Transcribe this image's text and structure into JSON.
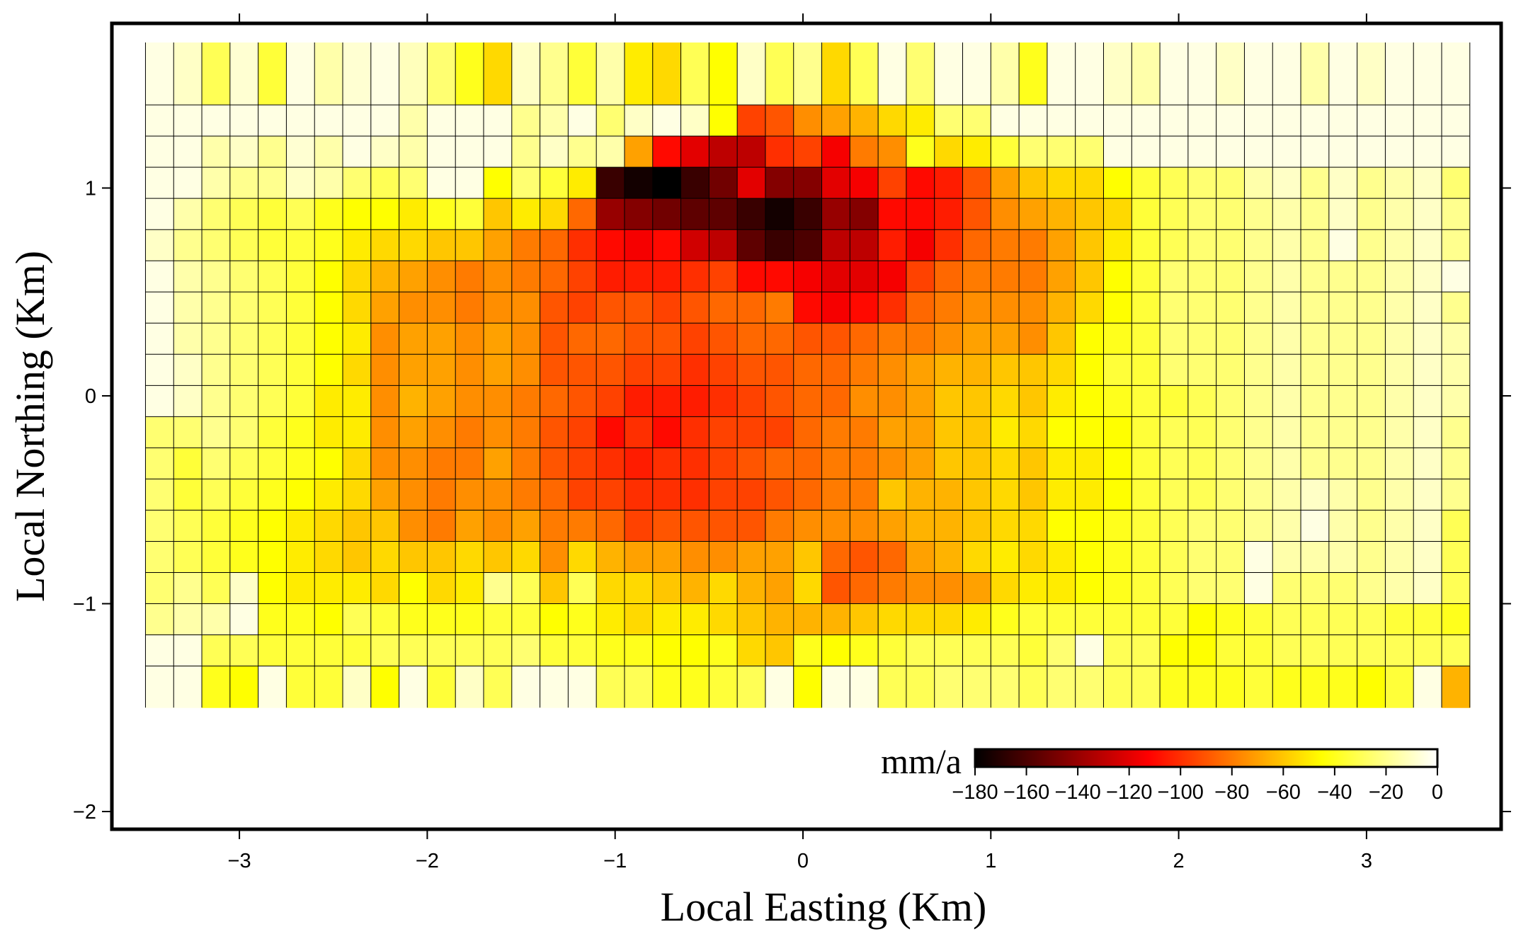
{
  "chart_data": {
    "type": "heatmap",
    "title": "",
    "xlabel": "Local Easting (Km)",
    "ylabel": "Local Northing (Km)",
    "xlim": [
      -3.7,
      3.7
    ],
    "ylim": [
      -2.1,
      1.75
    ],
    "x_ticks": [
      {
        "value": -3,
        "label": "−3"
      },
      {
        "value": -2,
        "label": "−2"
      },
      {
        "value": -1,
        "label": "−1"
      },
      {
        "value": 0,
        "label": "0"
      },
      {
        "value": 1,
        "label": "1"
      },
      {
        "value": 2,
        "label": "2"
      },
      {
        "value": 3,
        "label": "3"
      }
    ],
    "y_ticks": [
      {
        "value": -2,
        "label": "−2"
      },
      {
        "value": -1,
        "label": "−1"
      },
      {
        "value": 0,
        "label": "0"
      },
      {
        "value": 1,
        "label": "1"
      }
    ],
    "grid_x_start": -3.5,
    "grid_x_step": 0.15,
    "grid_y_top": 1.7,
    "grid_y_step": 0.15,
    "rows": [
      {
        "y0": 1.4,
        "y1": 1.7,
        "values": [
          -5,
          -10,
          -30,
          -8,
          -35,
          -5,
          -15,
          -8,
          -5,
          -12,
          -25,
          -40,
          -55,
          -10,
          -20,
          -35,
          -15,
          -50,
          -55,
          -30,
          -45,
          -10,
          -30,
          -20,
          -55,
          -30,
          -5,
          -25,
          -5,
          -5,
          -15,
          -40,
          -5,
          -5,
          -10,
          -15,
          -5,
          -5,
          -10,
          -5,
          -5,
          -15,
          -5,
          -10,
          -5,
          -5,
          -5
        ]
      },
      {
        "y0": 1.25,
        "y1": 1.4,
        "values": [
          -5,
          -5,
          -5,
          -5,
          -5,
          -5,
          -5,
          -5,
          -5,
          -15,
          -5,
          -5,
          -5,
          -20,
          -15,
          -5,
          -25,
          -10,
          -5,
          -10,
          -45,
          -95,
          -90,
          -75,
          -70,
          -65,
          -55,
          -50,
          -25,
          -25,
          -5,
          -5,
          -5,
          -5,
          -5,
          -5,
          -5,
          -5,
          -5,
          -5,
          -5,
          -5,
          -5,
          -5,
          -5,
          -5,
          -5
        ]
      },
      {
        "y0": 1.1,
        "y1": 1.25,
        "values": [
          -5,
          -5,
          -15,
          -10,
          -20,
          -8,
          -15,
          -5,
          -10,
          -15,
          -5,
          -5,
          -5,
          -20,
          -10,
          -20,
          -15,
          -70,
          -110,
          -120,
          -130,
          -130,
          -100,
          -95,
          -115,
          -80,
          -75,
          -40,
          -55,
          -50,
          -35,
          -25,
          -25,
          -25,
          -5,
          -5,
          -5,
          -5,
          -5,
          -5,
          -5,
          -5,
          -5,
          -5,
          -5,
          -5,
          -5
        ]
      },
      {
        "y0": 0.95,
        "y1": 1.1,
        "values": [
          -5,
          -5,
          -15,
          -20,
          -20,
          -10,
          -15,
          -25,
          -30,
          -25,
          -5,
          -5,
          -45,
          -25,
          -35,
          -50,
          -165,
          -175,
          -180,
          -165,
          -150,
          -120,
          -145,
          -145,
          -120,
          -115,
          -95,
          -110,
          -105,
          -90,
          -70,
          -60,
          -55,
          -55,
          -45,
          -35,
          -30,
          -25,
          -25,
          -15,
          -10,
          -20,
          -10,
          -20,
          -15,
          -10,
          -25
        ]
      },
      {
        "y0": 0.8,
        "y1": 0.95,
        "values": [
          -5,
          -15,
          -25,
          -30,
          -35,
          -30,
          -40,
          -45,
          -45,
          -50,
          -40,
          -35,
          -60,
          -50,
          -55,
          -85,
          -140,
          -145,
          -150,
          -155,
          -155,
          -165,
          -175,
          -165,
          -140,
          -145,
          -110,
          -110,
          -105,
          -90,
          -75,
          -70,
          -65,
          -60,
          -55,
          -35,
          -30,
          -25,
          -25,
          -20,
          -15,
          -20,
          -10,
          -20,
          -15,
          -10,
          -20
        ]
      },
      {
        "y0": 0.65,
        "y1": 0.8,
        "values": [
          -10,
          -20,
          -25,
          -30,
          -35,
          -35,
          -40,
          -50,
          -55,
          -55,
          -60,
          -60,
          -70,
          -80,
          -85,
          -100,
          -110,
          -115,
          -110,
          -125,
          -130,
          -155,
          -165,
          -160,
          -130,
          -130,
          -105,
          -115,
          -100,
          -85,
          -80,
          -80,
          -70,
          -60,
          -50,
          -35,
          -30,
          -25,
          -25,
          -20,
          -15,
          -20,
          -5,
          -20,
          -15,
          -10,
          -20
        ]
      },
      {
        "y0": 0.5,
        "y1": 0.65,
        "values": [
          -5,
          -15,
          -20,
          -25,
          -30,
          -35,
          -45,
          -55,
          -65,
          -70,
          -75,
          -80,
          -75,
          -80,
          -85,
          -95,
          -105,
          -105,
          -105,
          -100,
          -95,
          -110,
          -110,
          -115,
          -120,
          -120,
          -115,
          -95,
          -85,
          -80,
          -80,
          -80,
          -70,
          -60,
          -45,
          -35,
          -25,
          -25,
          -25,
          -20,
          -15,
          -20,
          -20,
          -20,
          -15,
          -10,
          -5
        ]
      },
      {
        "y0": 0.35,
        "y1": 0.5,
        "values": [
          -5,
          -15,
          -20,
          -25,
          -30,
          -35,
          -45,
          -55,
          -70,
          -75,
          -75,
          -80,
          -75,
          -75,
          -90,
          -95,
          -90,
          -90,
          -95,
          -90,
          -85,
          -85,
          -80,
          -110,
          -115,
          -110,
          -100,
          -85,
          -80,
          -75,
          -75,
          -75,
          -65,
          -55,
          -45,
          -35,
          -25,
          -25,
          -25,
          -20,
          -15,
          -20,
          -20,
          -20,
          -15,
          -10,
          -20
        ]
      },
      {
        "y0": 0.2,
        "y1": 0.35,
        "values": [
          -5,
          -15,
          -20,
          -25,
          -30,
          -35,
          -45,
          -50,
          -75,
          -70,
          -70,
          -75,
          -70,
          -75,
          -90,
          -85,
          -85,
          -90,
          -90,
          -95,
          -90,
          -85,
          -85,
          -90,
          -90,
          -85,
          -80,
          -80,
          -75,
          -70,
          -70,
          -75,
          -60,
          -45,
          -40,
          -35,
          -25,
          -25,
          -25,
          -20,
          -15,
          -20,
          -20,
          -20,
          -15,
          -10,
          -15
        ]
      },
      {
        "y0": 0.05,
        "y1": 0.2,
        "values": [
          -5,
          -10,
          -20,
          -25,
          -30,
          -35,
          -45,
          -55,
          -75,
          -70,
          -70,
          -75,
          -70,
          -75,
          -90,
          -90,
          -90,
          -95,
          -95,
          -100,
          -95,
          -90,
          -90,
          -85,
          -85,
          -80,
          -75,
          -70,
          -65,
          -65,
          -60,
          -60,
          -55,
          -45,
          -35,
          -35,
          -25,
          -25,
          -25,
          -20,
          -15,
          -20,
          -20,
          -20,
          -15,
          -10,
          -15
        ]
      },
      {
        "y0": -0.1,
        "y1": 0.05,
        "values": [
          -5,
          -10,
          -20,
          -25,
          -30,
          -35,
          -50,
          -50,
          -75,
          -65,
          -70,
          -75,
          -75,
          -80,
          -85,
          -90,
          -95,
          -105,
          -105,
          -105,
          -100,
          -95,
          -90,
          -85,
          -85,
          -75,
          -75,
          -70,
          -60,
          -60,
          -55,
          -60,
          -50,
          -45,
          -40,
          -35,
          -35,
          -30,
          -25,
          -20,
          -15,
          -20,
          -20,
          -20,
          -15,
          -10,
          -15
        ]
      },
      {
        "y0": -0.25,
        "y1": -0.1,
        "values": [
          -25,
          -25,
          -20,
          -25,
          -35,
          -40,
          -50,
          -50,
          -75,
          -70,
          -75,
          -80,
          -75,
          -80,
          -90,
          -95,
          -110,
          -100,
          -110,
          -100,
          -95,
          -95,
          -95,
          -85,
          -80,
          -80,
          -70,
          -70,
          -60,
          -60,
          -50,
          -55,
          -45,
          -45,
          -45,
          -35,
          -30,
          -30,
          -25,
          -20,
          -15,
          -20,
          -20,
          -20,
          -15,
          -10,
          -20
        ]
      },
      {
        "y0": -0.4,
        "y1": -0.25,
        "values": [
          -25,
          -35,
          -25,
          -30,
          -35,
          -40,
          -45,
          -55,
          -75,
          -75,
          -80,
          -80,
          -70,
          -80,
          -90,
          -95,
          -100,
          -105,
          -100,
          -100,
          -95,
          -90,
          -85,
          -85,
          -80,
          -80,
          -75,
          -70,
          -60,
          -60,
          -55,
          -60,
          -50,
          -50,
          -45,
          -35,
          -30,
          -30,
          -25,
          -20,
          -15,
          -20,
          -20,
          -20,
          -15,
          -10,
          -20
        ]
      },
      {
        "y0": -0.55,
        "y1": -0.4,
        "values": [
          -25,
          -35,
          -30,
          -35,
          -40,
          -45,
          -50,
          -55,
          -70,
          -75,
          -80,
          -75,
          -75,
          -80,
          -85,
          -95,
          -95,
          -100,
          -100,
          -100,
          -95,
          -95,
          -90,
          -85,
          -80,
          -80,
          -60,
          -65,
          -65,
          -60,
          -55,
          -60,
          -50,
          -50,
          -45,
          -35,
          -30,
          -30,
          -25,
          -20,
          -15,
          -10,
          -15,
          -20,
          -15,
          -10,
          -20
        ]
      },
      {
        "y0": -0.7,
        "y1": -0.55,
        "values": [
          -25,
          -30,
          -35,
          -40,
          -45,
          -50,
          -55,
          -60,
          -60,
          -75,
          -80,
          -70,
          -75,
          -70,
          -80,
          -80,
          -85,
          -95,
          -90,
          -90,
          -90,
          -90,
          -80,
          -75,
          -75,
          -75,
          -70,
          -65,
          -65,
          -60,
          -55,
          -55,
          -45,
          -45,
          -40,
          -35,
          -30,
          -25,
          -25,
          -20,
          -15,
          -5,
          -15,
          -20,
          -15,
          -10,
          -30
        ]
      },
      {
        "y0": -0.85,
        "y1": -0.7,
        "values": [
          -25,
          -30,
          -35,
          -40,
          -45,
          -50,
          -55,
          -60,
          -55,
          -60,
          -60,
          -55,
          -60,
          -55,
          -75,
          -55,
          -65,
          -70,
          -70,
          -75,
          -75,
          -70,
          -70,
          -60,
          -85,
          -90,
          -85,
          -70,
          -65,
          -55,
          -50,
          -55,
          -50,
          -45,
          -40,
          -35,
          -30,
          -25,
          -25,
          -5,
          -15,
          -15,
          -15,
          -20,
          -15,
          -10,
          -30
        ]
      },
      {
        "y0": -1.0,
        "y1": -0.85,
        "values": [
          -25,
          -20,
          -30,
          -10,
          -45,
          -50,
          -50,
          -50,
          -55,
          -45,
          -55,
          -50,
          -20,
          -30,
          -60,
          -30,
          -55,
          -55,
          -60,
          -65,
          -55,
          -65,
          -70,
          -55,
          -90,
          -85,
          -80,
          -75,
          -75,
          -70,
          -55,
          -50,
          -50,
          -45,
          -40,
          -35,
          -30,
          -25,
          -25,
          -5,
          -25,
          -25,
          -25,
          -20,
          -15,
          -10,
          -30
        ]
      },
      {
        "y0": -1.15,
        "y1": -1.0,
        "values": [
          -20,
          -15,
          -15,
          -5,
          -40,
          -40,
          -45,
          -30,
          -35,
          -40,
          -40,
          -40,
          -35,
          -35,
          -45,
          -40,
          -50,
          -55,
          -50,
          -50,
          -55,
          -60,
          -65,
          -65,
          -65,
          -60,
          -55,
          -55,
          -55,
          -50,
          -40,
          -35,
          -35,
          -35,
          -35,
          -35,
          -35,
          -45,
          -40,
          -35,
          -30,
          -30,
          -30,
          -30,
          -35,
          -35,
          -40
        ]
      },
      {
        "y0": -1.3,
        "y1": -1.15,
        "values": [
          -5,
          -5,
          -30,
          -30,
          -35,
          -35,
          -35,
          -35,
          -30,
          -30,
          -30,
          -30,
          -30,
          -25,
          -35,
          -35,
          -40,
          -40,
          -45,
          -45,
          -40,
          -55,
          -60,
          -40,
          -45,
          -40,
          -35,
          -30,
          -30,
          -30,
          -30,
          -35,
          -25,
          -5,
          -30,
          -30,
          -45,
          -45,
          -35,
          -35,
          -30,
          -30,
          -30,
          -30,
          -30,
          -30,
          -30
        ]
      },
      {
        "y0": -1.5,
        "y1": -1.3,
        "values": [
          -5,
          -5,
          -40,
          -45,
          -5,
          -35,
          -35,
          -10,
          -45,
          -5,
          -35,
          -10,
          -30,
          -5,
          -5,
          -5,
          -30,
          -30,
          -40,
          -40,
          -35,
          -30,
          -5,
          -45,
          -5,
          -5,
          -30,
          -30,
          -25,
          -25,
          -25,
          -30,
          -25,
          -25,
          -30,
          -30,
          -40,
          -40,
          -40,
          -35,
          -40,
          -40,
          -40,
          -45,
          -35,
          -5,
          -65
        ]
      }
    ],
    "colorbar": {
      "title": "mm/a",
      "min": -180,
      "max": 0,
      "colormap": "hot",
      "ticks": [
        {
          "value": -180,
          "label": "−180"
        },
        {
          "value": -160,
          "label": "−160"
        },
        {
          "value": -140,
          "label": "−140"
        },
        {
          "value": -120,
          "label": "−120"
        },
        {
          "value": -100,
          "label": "−100"
        },
        {
          "value": -80,
          "label": "−80"
        },
        {
          "value": -60,
          "label": "−60"
        },
        {
          "value": -40,
          "label": "−40"
        },
        {
          "value": -20,
          "label": "−20"
        },
        {
          "value": 0,
          "label": "0"
        }
      ],
      "placement": "bottom-right"
    }
  }
}
